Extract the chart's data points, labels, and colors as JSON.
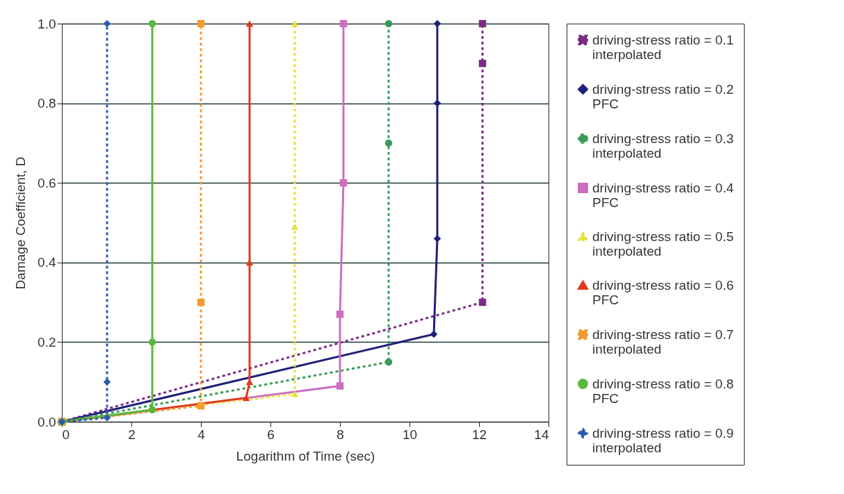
{
  "chart_data": {
    "type": "line",
    "xlabel": "Logarithm of Time (sec)",
    "ylabel": "Damage Coefficient, D",
    "xlim": [
      0,
      14
    ],
    "xticks": [
      0,
      2,
      4,
      6,
      8,
      10,
      12,
      14
    ],
    "ylim": [
      0,
      1
    ],
    "yticks": [
      {
        "value": 0,
        "label": "0.0"
      },
      {
        "value": 0.2,
        "label": "0.2"
      },
      {
        "value": 0.4,
        "label": "0.4"
      },
      {
        "value": 0.6,
        "label": "0.6"
      },
      {
        "value": 0.8,
        "label": "0.8"
      },
      {
        "value": 1,
        "label": "1.0"
      }
    ],
    "grid": "y",
    "legend": "right",
    "series": [
      {
        "name": "driving-stress ratio = 0.1\ninterpolated",
        "color": "#7b2a86",
        "marker": "square",
        "line_style": "dotted",
        "x": [
          0,
          12.1,
          12.1,
          12.1
        ],
        "values": [
          0,
          0.3,
          0.9,
          1.0
        ]
      },
      {
        "name": "driving-stress ratio = 0.2\nPFC",
        "color": "#1f1f7a",
        "marker": "diamond",
        "line_style": "solid",
        "x": [
          0,
          10.7,
          10.8,
          10.8,
          10.8
        ],
        "values": [
          0,
          0.22,
          0.46,
          0.8,
          1.0
        ]
      },
      {
        "name": "driving-stress ratio = 0.3\ninterpolated",
        "color": "#3a9a5a",
        "marker": "circle",
        "line_style": "dotted",
        "x": [
          0,
          9.4,
          9.4,
          9.4
        ],
        "values": [
          0,
          0.15,
          0.7,
          1.0
        ]
      },
      {
        "name": "driving-stress ratio = 0.4\nPFC",
        "color": "#cc6fbf",
        "marker": "square",
        "line_style": "solid",
        "x": [
          0,
          8,
          8,
          8.1,
          8.1
        ],
        "values": [
          0,
          0.09,
          0.27,
          0.6,
          1.0
        ]
      },
      {
        "name": "driving-stress ratio = 0.5\ninterpolated",
        "color": "#e8e040",
        "marker": "triangle",
        "line_style": "dotted",
        "x": [
          0,
          6.7,
          6.7,
          6.7
        ],
        "values": [
          0,
          0.07,
          0.49,
          1.0
        ]
      },
      {
        "name": "driving-stress ratio = 0.6\nPFC",
        "color": "#e03a1a",
        "marker": "triangle",
        "line_style": "solid",
        "x": [
          0,
          5.3,
          5.4,
          5.4,
          5.4
        ],
        "values": [
          0,
          0.06,
          0.1,
          0.4,
          1.0
        ]
      },
      {
        "name": "driving-stress ratio = 0.7\ninterpolated",
        "color": "#f39a30",
        "marker": "square",
        "line_style": "dotted",
        "x": [
          0,
          4,
          4,
          4
        ],
        "values": [
          0,
          0.04,
          0.3,
          1.0
        ]
      },
      {
        "name": "driving-stress ratio = 0.8\nPFC",
        "color": "#5ab83a",
        "marker": "circle",
        "line_style": "solid",
        "x": [
          0,
          2.6,
          2.6,
          2.6
        ],
        "values": [
          0,
          0.03,
          0.2,
          1.0
        ]
      },
      {
        "name": "driving-stress ratio = 0.9\ninterpolated",
        "color": "#2a5ab0",
        "marker": "diamond",
        "line_style": "dotted",
        "x": [
          0,
          1.3,
          1.3,
          1.3
        ],
        "values": [
          0,
          0.01,
          0.1,
          1.0
        ]
      }
    ]
  }
}
